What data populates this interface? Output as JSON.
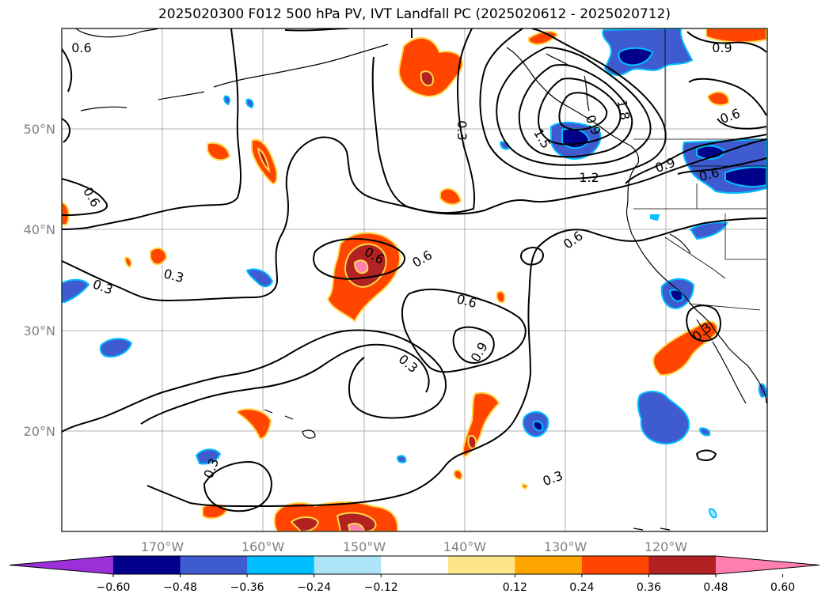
{
  "title": "2025020300 F012 500 hPa PV, IVT Landfall PC (2025020612 - 2025020712)",
  "lat_labels": [
    "50°N",
    "40°N",
    "30°N",
    "20°N"
  ],
  "lon_labels": [
    "170°W",
    "160°W",
    "150°W",
    "140°W",
    "130°W",
    "120°W"
  ],
  "contour_labels": [
    "0.6",
    "0.3",
    "1.5",
    "1.8",
    "0.9",
    "1.2",
    "0.9",
    "0.6",
    "0.6",
    "0.3",
    "0.6",
    "0.6",
    "0.6",
    "0.6",
    "0.9",
    "0.3",
    "0.3",
    "0.3",
    "0.3",
    "0.3",
    "0.6"
  ],
  "colorbar": {
    "colors": [
      "#9b30d9",
      "#00008b",
      "#3f5bd0",
      "#00bfff",
      "#aee4f7",
      "#ffffff",
      "#fde68a",
      "#ffa500",
      "#ff4500",
      "#b22222",
      "#ff7fb0"
    ],
    "ticks": [
      "−0.60",
      "−0.48",
      "−0.36",
      "−0.24",
      "−0.12",
      "0.12",
      "0.24",
      "0.36",
      "0.48",
      "0.60"
    ]
  }
}
